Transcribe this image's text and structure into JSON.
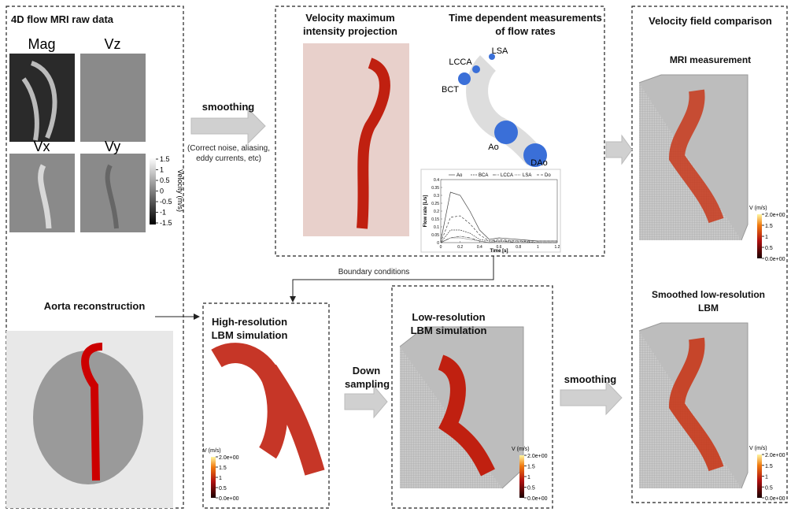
{
  "raw_data": {
    "title": "4D flow MRI raw data",
    "panels": [
      "Mag",
      "Vz",
      "Vx",
      "Vy"
    ],
    "colorbar": {
      "label": "Velocity (m/s)",
      "ticks": [
        1.5,
        1,
        0.5,
        0,
        -0.5,
        -1,
        -1.5
      ]
    }
  },
  "aorta_reconstruction": {
    "title": "Aorta reconstruction"
  },
  "smoothing_step": {
    "title": "smoothing",
    "note": "(Correct noise, aliasing, eddy currents, etc)"
  },
  "measurement": {
    "mip_title": "Velocity maximum intensity projection",
    "flow_title": "Time dependent measurements of flow rates",
    "vessel_labels": [
      "LSA",
      "LCCA",
      "BCT",
      "Ao",
      "DAo"
    ],
    "chart_data": {
      "type": "line",
      "x_label": "Time [s]",
      "y_label": "Flow rate [L/s]",
      "x": [
        0,
        0.1,
        0.2,
        0.3,
        0.4,
        0.5,
        0.6,
        0.8,
        1.0,
        1.2
      ],
      "series": [
        {
          "name": "Ao",
          "color": "#444444",
          "dash": "none",
          "values": [
            0.01,
            0.32,
            0.3,
            0.2,
            0.08,
            0.02,
            0.03,
            0.02,
            0.01,
            0.01
          ]
        },
        {
          "name": "BCA",
          "color": "#444444",
          "dash": "2 1",
          "values": [
            0,
            0.08,
            0.08,
            0.06,
            0.02,
            0.01,
            0.01,
            0.01,
            0,
            0
          ]
        },
        {
          "name": "LCCA",
          "color": "#444444",
          "dash": "4 1 1 1",
          "values": [
            0,
            0.03,
            0.04,
            0.03,
            0.01,
            0,
            0.01,
            0,
            0,
            0
          ]
        },
        {
          "name": "LSA",
          "color": "#444444",
          "dash": "1 1",
          "values": [
            0,
            0.03,
            0.03,
            0.02,
            0.01,
            0,
            0,
            0,
            0,
            0
          ]
        },
        {
          "name": "Do",
          "color": "#444444",
          "dash": "3 2",
          "values": [
            0,
            0.16,
            0.17,
            0.12,
            0.05,
            0.01,
            0.02,
            0.01,
            0.01,
            0.01
          ]
        }
      ],
      "xlim": [
        0,
        1.2
      ],
      "xticks": [
        0,
        0.2,
        0.4,
        0.6,
        0.8,
        1,
        1.2
      ],
      "ylim": [
        0,
        0.4
      ],
      "yticks": [
        0,
        0.05,
        0.1,
        0.15,
        0.2,
        0.25,
        0.3,
        0.35,
        0.4
      ]
    }
  },
  "boundary_conditions": "Boundary conditions",
  "high_res": {
    "title": "High-resolution LBM simulation"
  },
  "down_sampling": "Down sampling",
  "low_res": {
    "title": "Low-resolution LBM simulation"
  },
  "smoothing_2": "smoothing",
  "comparison": {
    "title": "Velocity field comparison",
    "mri": "MRI measurement",
    "smoothed": "Smoothed low-resolution LBM"
  },
  "v_colorbar": {
    "label": "V (m/s)",
    "ticks": [
      {
        "value": 2,
        "label": "2.0e+00"
      },
      1.5,
      1,
      0.5,
      {
        "value": 0,
        "label": "0.0e+00"
      }
    ]
  }
}
